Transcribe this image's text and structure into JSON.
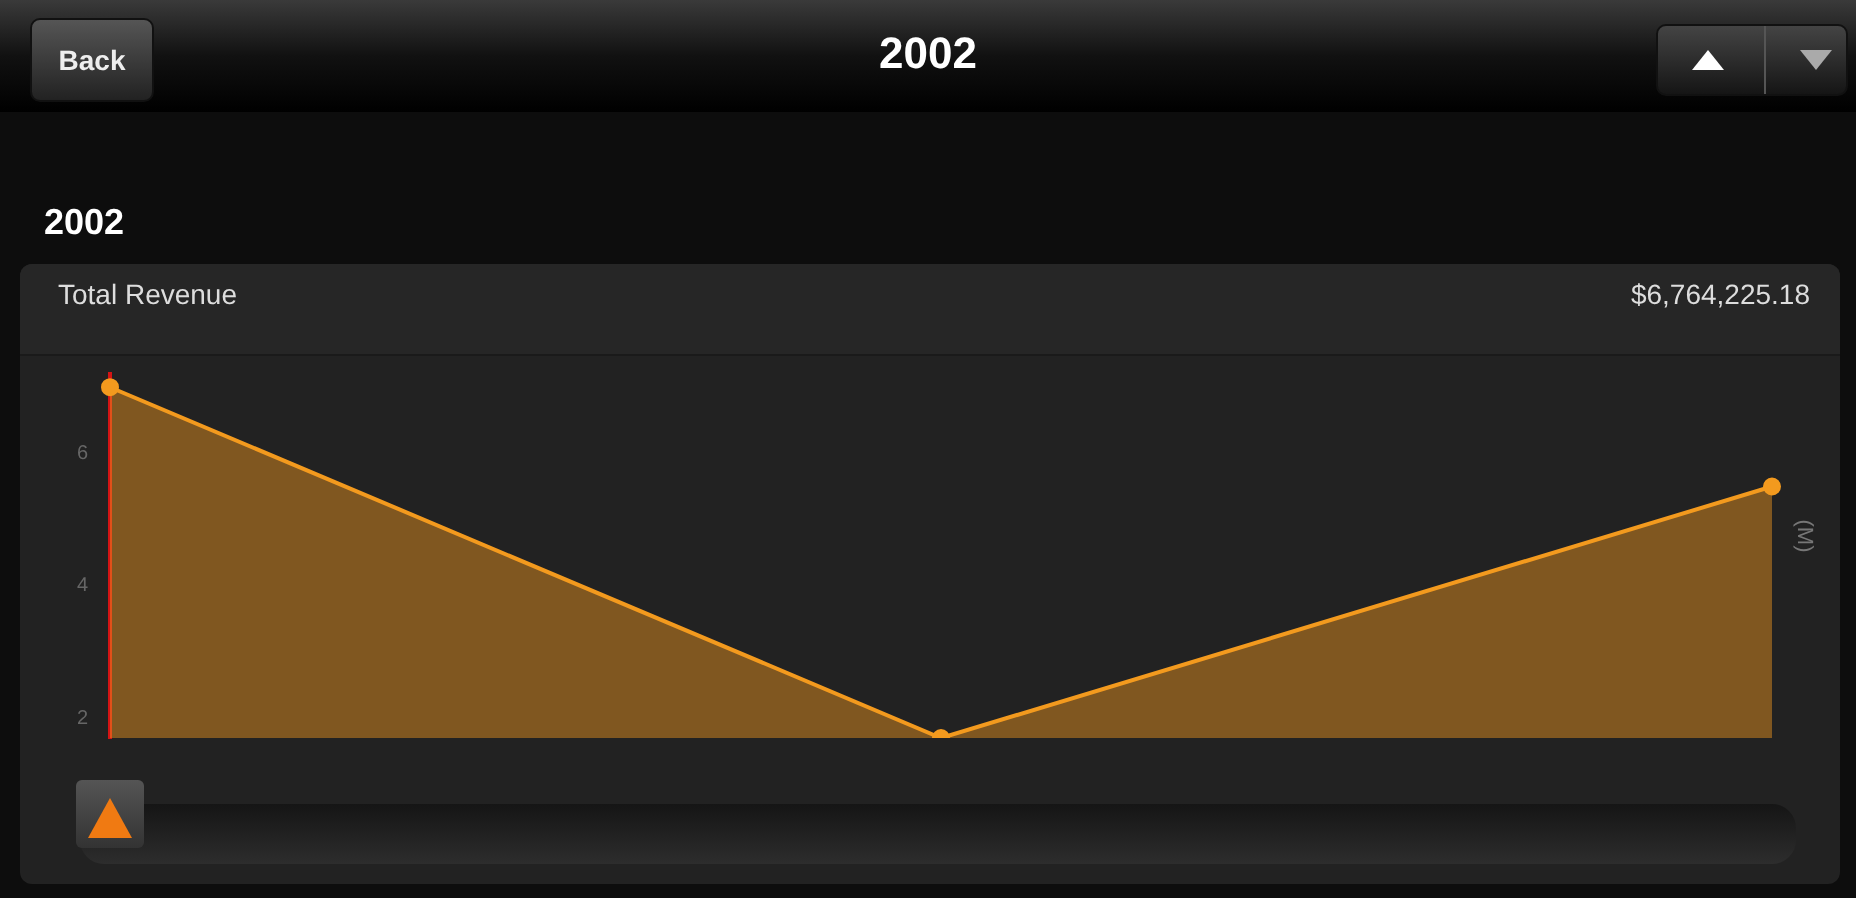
{
  "chart_data": {
    "type": "area",
    "title": "2002",
    "subtitle": "2002",
    "ylabel": "(M)",
    "annotations": [
      "Back",
      "Total Revenue",
      "$6,764,225.18"
    ],
    "categories": [
      null,
      null,
      null
    ],
    "series": [
      {
        "color": "#f39a1e",
        "values": [
          7.0,
          1.7,
          5.5
        ]
      }
    ],
    "ylim": [
      1.7,
      7.2
    ],
    "yticks": [
      2,
      4,
      6
    ],
    "marker": "circle",
    "grid": false,
    "legend": false,
    "tick_labels": "y"
  }
}
